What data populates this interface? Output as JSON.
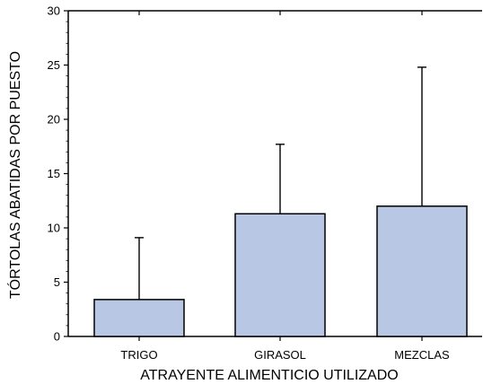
{
  "chart_data": {
    "type": "bar",
    "categories": [
      "TRIGO",
      "GIRASOL",
      "MEZCLAS"
    ],
    "values": [
      3.4,
      11.3,
      12.0
    ],
    "error_upper": [
      9.1,
      17.7,
      24.8
    ],
    "xlabel": "ATRAYENTE ALIMENTICIO UTILIZADO",
    "ylabel": "TÓRTOLAS ABATIDAS POR PUESTO",
    "ylim": [
      0,
      30
    ],
    "yticks": [
      0,
      5,
      10,
      15,
      20,
      25,
      30
    ],
    "grid": false,
    "colors": {
      "bar": "#b8c8e4",
      "stroke": "#000000"
    }
  }
}
